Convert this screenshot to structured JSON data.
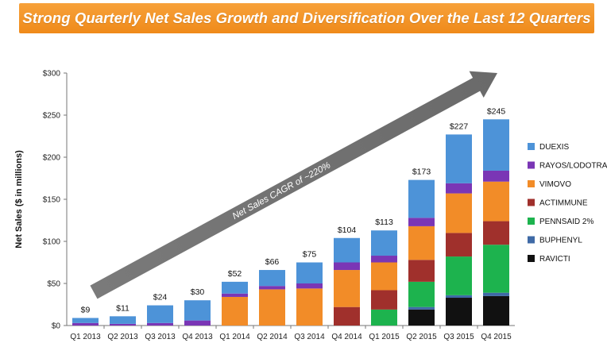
{
  "title": "Strong Quarterly Net Sales Growth and Diversification Over the Last 12 Quarters",
  "arrow_label": "Net Sales CAGR of ~220%",
  "chart_data": {
    "type": "bar",
    "stacked": true,
    "title": "Strong Quarterly Net Sales Growth and Diversification Over the Last 12 Quarters",
    "xlabel": "",
    "ylabel": "Net Sales ($ in millions)",
    "ylim": [
      0,
      300
    ],
    "yticks": [
      0,
      50,
      100,
      150,
      200,
      250,
      300
    ],
    "ytick_labels": [
      "$0",
      "$50",
      "$100",
      "$150",
      "$200",
      "$250",
      "$300"
    ],
    "grid": false,
    "legend_position": "right",
    "categories": [
      "Q1 2013",
      "Q2 2013",
      "Q3 2013",
      "Q4 2013",
      "Q1 2014",
      "Q2 2014",
      "Q3 2014",
      "Q4 2014",
      "Q1 2015",
      "Q2 2015",
      "Q3 2015",
      "Q4 2015"
    ],
    "totals": [
      9,
      11,
      24,
      30,
      52,
      66,
      75,
      104,
      113,
      173,
      227,
      245
    ],
    "total_labels": [
      "$9",
      "$11",
      "$24",
      "$30",
      "$52",
      "$66",
      "$75",
      "$104",
      "$113",
      "$173",
      "$227",
      "$245"
    ],
    "series": [
      {
        "name": "RAVICTI",
        "color": "#111111",
        "values": [
          0,
          0,
          0,
          0,
          0,
          0,
          0,
          0,
          0,
          19,
          33,
          35
        ]
      },
      {
        "name": "BUPHENYL",
        "color": "#3f6aa6",
        "values": [
          0,
          0,
          0,
          0,
          0,
          0,
          0,
          0,
          0,
          3,
          3,
          4
        ]
      },
      {
        "name": "PENNSAID 2%",
        "color": "#1db34e",
        "values": [
          0,
          0,
          0,
          0,
          0,
          0,
          0,
          0,
          19,
          30,
          46,
          57
        ]
      },
      {
        "name": "ACTIMMUNE",
        "color": "#a0302c",
        "values": [
          0,
          0,
          0,
          0,
          0,
          0,
          0,
          22,
          23,
          26,
          28,
          28
        ]
      },
      {
        "name": "VIMOVO",
        "color": "#f28c28",
        "values": [
          0,
          0,
          0,
          0,
          34,
          43,
          44,
          44,
          33,
          40,
          47,
          47
        ]
      },
      {
        "name": "RAYOS/LODOTRA",
        "color": "#7a36b5",
        "values": [
          3,
          2,
          3,
          6,
          4,
          4,
          6,
          9,
          8,
          10,
          12,
          13
        ]
      },
      {
        "name": "DUEXIS",
        "color": "#4d93d8",
        "values": [
          6,
          9,
          21,
          24,
          14,
          19,
          25,
          29,
          30,
          45,
          58,
          61
        ]
      }
    ],
    "legend_order": [
      "DUEXIS",
      "RAYOS/LODOTRA",
      "VIMOVO",
      "ACTIMMUNE",
      "PENNSAID 2%",
      "BUPHENYL",
      "RAVICTI"
    ]
  }
}
